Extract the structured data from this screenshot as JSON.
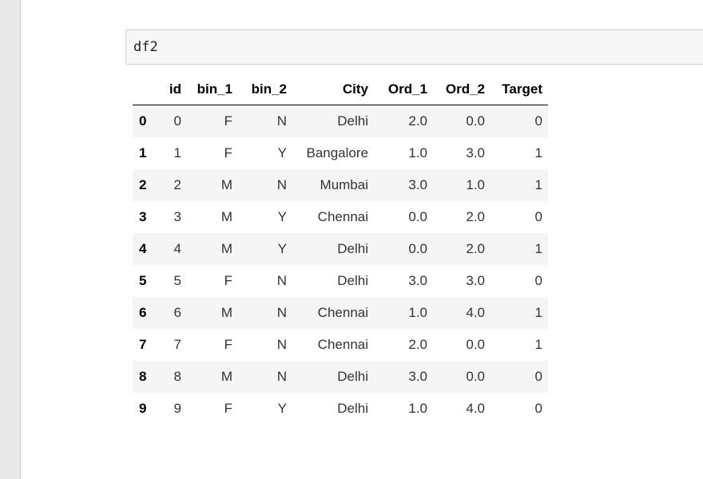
{
  "cell": {
    "code": "df2"
  },
  "table": {
    "columns": [
      "",
      "id",
      "bin_1",
      "bin_2",
      "City",
      "Ord_1",
      "Ord_2",
      "Target"
    ],
    "rows": [
      {
        "index": "0",
        "id": "0",
        "bin_1": "F",
        "bin_2": "N",
        "City": "Delhi",
        "Ord_1": "2.0",
        "Ord_2": "0.0",
        "Target": "0"
      },
      {
        "index": "1",
        "id": "1",
        "bin_1": "F",
        "bin_2": "Y",
        "City": "Bangalore",
        "Ord_1": "1.0",
        "Ord_2": "3.0",
        "Target": "1"
      },
      {
        "index": "2",
        "id": "2",
        "bin_1": "M",
        "bin_2": "N",
        "City": "Mumbai",
        "Ord_1": "3.0",
        "Ord_2": "1.0",
        "Target": "1"
      },
      {
        "index": "3",
        "id": "3",
        "bin_1": "M",
        "bin_2": "Y",
        "City": "Chennai",
        "Ord_1": "0.0",
        "Ord_2": "2.0",
        "Target": "0"
      },
      {
        "index": "4",
        "id": "4",
        "bin_1": "M",
        "bin_2": "Y",
        "City": "Delhi",
        "Ord_1": "0.0",
        "Ord_2": "2.0",
        "Target": "1"
      },
      {
        "index": "5",
        "id": "5",
        "bin_1": "F",
        "bin_2": "N",
        "City": "Delhi",
        "Ord_1": "3.0",
        "Ord_2": "3.0",
        "Target": "0"
      },
      {
        "index": "6",
        "id": "6",
        "bin_1": "M",
        "bin_2": "N",
        "City": "Chennai",
        "Ord_1": "1.0",
        "Ord_2": "4.0",
        "Target": "1"
      },
      {
        "index": "7",
        "id": "7",
        "bin_1": "F",
        "bin_2": "N",
        "City": "Chennai",
        "Ord_1": "2.0",
        "Ord_2": "0.0",
        "Target": "1"
      },
      {
        "index": "8",
        "id": "8",
        "bin_1": "M",
        "bin_2": "N",
        "City": "Delhi",
        "Ord_1": "3.0",
        "Ord_2": "0.0",
        "Target": "0"
      },
      {
        "index": "9",
        "id": "9",
        "bin_1": "F",
        "bin_2": "Y",
        "City": "Delhi",
        "Ord_1": "1.0",
        "Ord_2": "4.0",
        "Target": "0"
      }
    ]
  },
  "colors": {
    "gutter": "#e8e8e8",
    "cell_background": "#f7f7f7",
    "cell_border": "#cfcfcf",
    "row_stripe": "#f5f5f5"
  }
}
